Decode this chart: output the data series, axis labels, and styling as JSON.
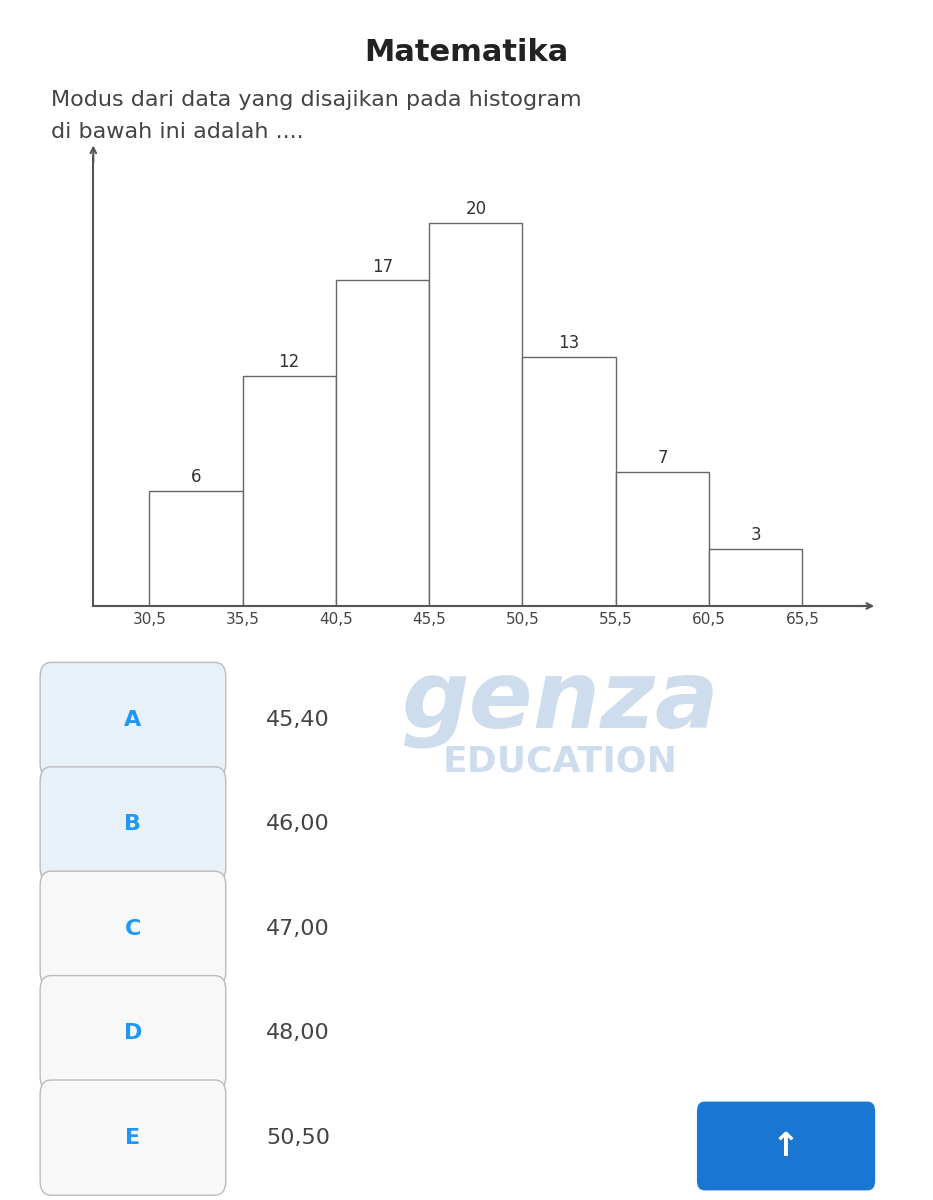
{
  "title": "Matematika",
  "question_line1": "Modus dari data yang disajikan pada histogram",
  "question_line2": "di bawah ini adalah ....",
  "bar_labels": [
    "30,5",
    "35,5",
    "40,5",
    "45,5",
    "50,5",
    "55,5",
    "60,5",
    "65,5"
  ],
  "bar_edges": [
    30.5,
    35.5,
    40.5,
    45.5,
    50.5,
    55.5,
    60.5,
    65.5
  ],
  "bar_heights": [
    6,
    12,
    17,
    20,
    13,
    7,
    3
  ],
  "bar_values_labels": [
    "6",
    "12",
    "17",
    "20",
    "13",
    "7",
    "3"
  ],
  "bar_color": "#ffffff",
  "bar_edgecolor": "#666666",
  "background_color": "#ffffff",
  "choice_letters": [
    "A",
    "B",
    "C",
    "D",
    "E"
  ],
  "choice_values": [
    "45,40",
    "46,00",
    "47,00",
    "48,00",
    "50,50"
  ],
  "choice_box_colors": [
    "#e8f0f8",
    "#e8f0f8",
    "#f8f8f8",
    "#f8f8f8",
    "#f8f8f8"
  ],
  "watermark_genza_color": "#c5d8ec",
  "watermark_edu_color": "#c5d8ec",
  "up_button_color": "#1976D2",
  "axis_color": "#555555",
  "title_fontsize": 22,
  "question_fontsize": 16,
  "choice_fontsize": 16,
  "bar_label_fontsize": 12,
  "tick_fontsize": 11
}
